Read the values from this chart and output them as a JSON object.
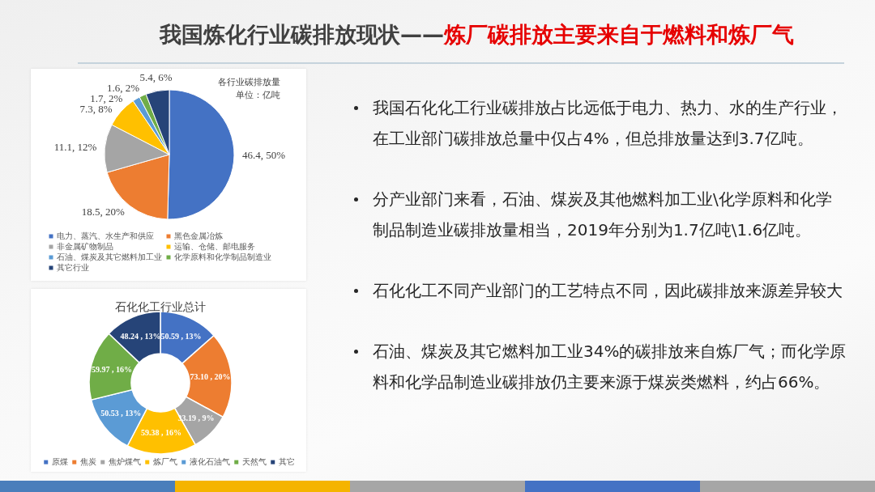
{
  "chart_data": [
    {
      "type": "other",
      "title": "我国炼化行业碳排放现状——",
      "subtitle": "炼厂碳排放主要来自于燃料和炼厂气",
      "annotations": [
        "我国石化化工行业碳排放占比远低于电力、热力、水的生产行业，在工业部门碳排放总量中仅占4%，但总排放量达到3.7亿吨。",
        "分产业部门来看，石油、煤炭及其他燃料加工业\\化学原料和化学制品制造业碳排放量相当，2019年分别为1.7亿吨\\1.6亿吨。",
        "石化化工不同产业部门的工艺特点不同，因此碳排放来源差异较大",
        "石油、煤炭及其它燃料加工业34%的碳排放来自炼厂气；而化学原料和化学品制造业碳排放仍主要来源于煤炭类燃料，约占66%。"
      ]
    },
    {
      "type": "pie",
      "title": "各行业碳排放量",
      "subtitle": "单位：亿吨",
      "categories": [
        "电力、蒸汽、水生产和供应",
        "黑色金属冶炼",
        "非金属矿物制品",
        "运输、仓储、邮电服务",
        "石油、煤炭及其它燃料加工业",
        "化学原料和化学制品制造业",
        "其它行业"
      ],
      "values": [
        46.4,
        18.5,
        11.1,
        7.3,
        1.7,
        1.6,
        5.4
      ],
      "colors": [
        "#4472c4",
        "#ed7d31",
        "#a5a5a5",
        "#ffc000",
        "#5b9bd5",
        "#70ad47",
        "#264478"
      ],
      "value_labels": [
        "46.4, 50%",
        "18.5, 20%",
        "11.1, 12%",
        "7.3, 8%",
        "1.7, 2%",
        "1.6, 2%",
        "5.4, 6%"
      ],
      "legend": "bottom"
    },
    {
      "type": "donut",
      "title": "石化化工行业总计",
      "categories": [
        "原煤",
        "焦炭",
        "焦炉煤气",
        "炼厂气",
        "液化石油气",
        "天然气",
        "其它"
      ],
      "values": [
        50.59,
        73.1,
        33.19,
        59.38,
        50.53,
        59.97,
        48.24
      ],
      "colors": [
        "#4472c4",
        "#ed7d31",
        "#a5a5a5",
        "#ffc000",
        "#5b9bd5",
        "#70ad47",
        "#264478"
      ],
      "value_labels": [
        "50.59 , 13%",
        "73.10 , 20%",
        "33.19 , 9%",
        "59.38 , 16%",
        "50.53 , 13%",
        "59.97 , 16%",
        "48.24 , 13%"
      ],
      "legend": "bottom"
    }
  ]
}
